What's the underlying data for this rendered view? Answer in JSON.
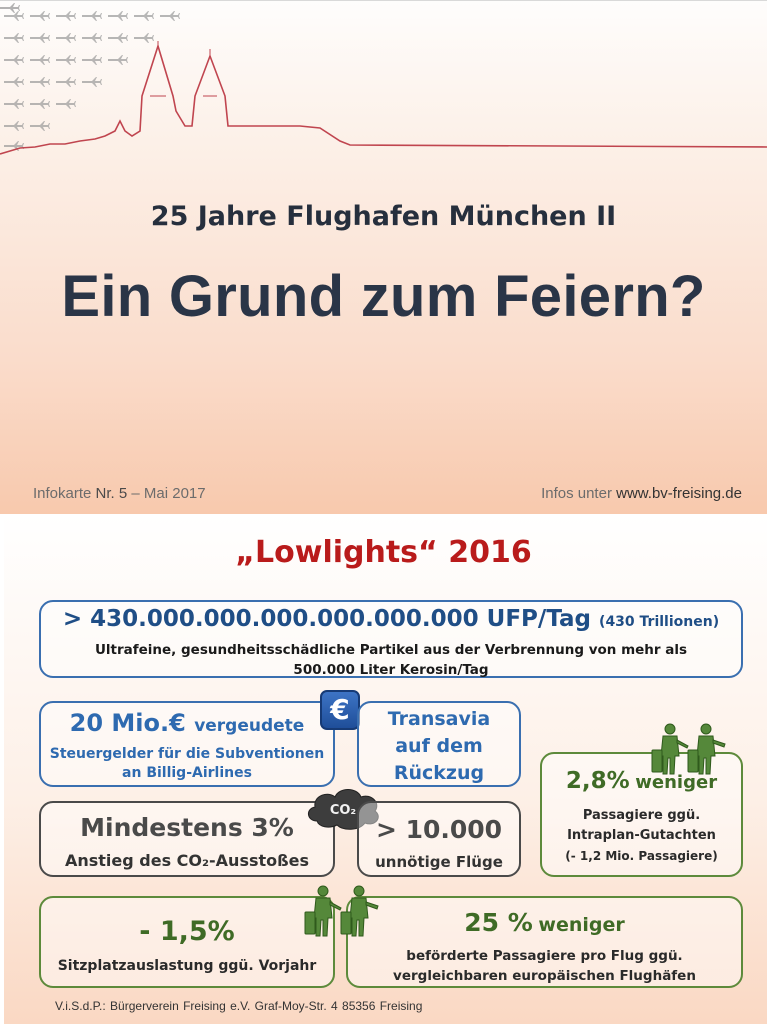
{
  "header": {
    "subtitle": "25 Jahre Flughafen München II",
    "headline": "Ein Grund zum Feiern?",
    "infokarte_prefix": "Infokarte ",
    "infokarte_number": "Nr. 5",
    "infokarte_date": " – Mai 2017",
    "infos_prefix": "Infos unter ",
    "infos_url": "www.bv-freising.de"
  },
  "lowlights": {
    "title": "„Lowlights“ 2016",
    "ufp": {
      "main": "> 430.000.000.000.000.000.000 UFP/Tag",
      "note": "(430 Trillionen)",
      "desc_line1": "Ultrafeine, gesundheitsschädliche Partikel aus der Verbrennung von mehr als",
      "desc_line2": "500.000 Liter Kerosin/Tag"
    },
    "subsidy": {
      "amount": "20 Mio.€",
      "word": "vergeudete",
      "line1": "Steuergelder für die Subventionen",
      "line2": "an Billig-Airlines"
    },
    "euro_symbol": "€",
    "transavia": {
      "line1": "Transavia",
      "line2": "auf dem",
      "line3": "Rückzug"
    },
    "co2": {
      "big": "Mindestens 3%",
      "small": "Anstieg des CO₂-Ausstoßes",
      "cloud_label": "CO₂"
    },
    "flights": {
      "big": "> 10.000",
      "small": "unnötige Flüge"
    },
    "passengers": {
      "pct": "2,8%",
      "word": "weniger",
      "line1": "Passagiere ggü.",
      "line2": "Intraplan-Gutachten",
      "line3": "(- 1,2 Mio. Passagiere)"
    },
    "seats": {
      "big": "- 1,5%",
      "small": "Sitzplatzauslastung ggü. Vorjahr"
    },
    "per_flight": {
      "pct": "25 %",
      "word": "weniger",
      "line1": "beförderte Passagiere pro Flug ggü.",
      "line2": "vergleichbaren europäischen Flughäfen"
    }
  },
  "footer": {
    "text": "V.i.S.d.P.: Bürgerverein Freising e.V.  Graf-Moy-Str. 4   85356 Freising"
  },
  "colors": {
    "title_dark": "#2a3547",
    "lowlights_red": "#b91b1b",
    "blue": "#3a6fb0",
    "green": "#5d8a3b",
    "skyline_red": "#c0454f"
  }
}
